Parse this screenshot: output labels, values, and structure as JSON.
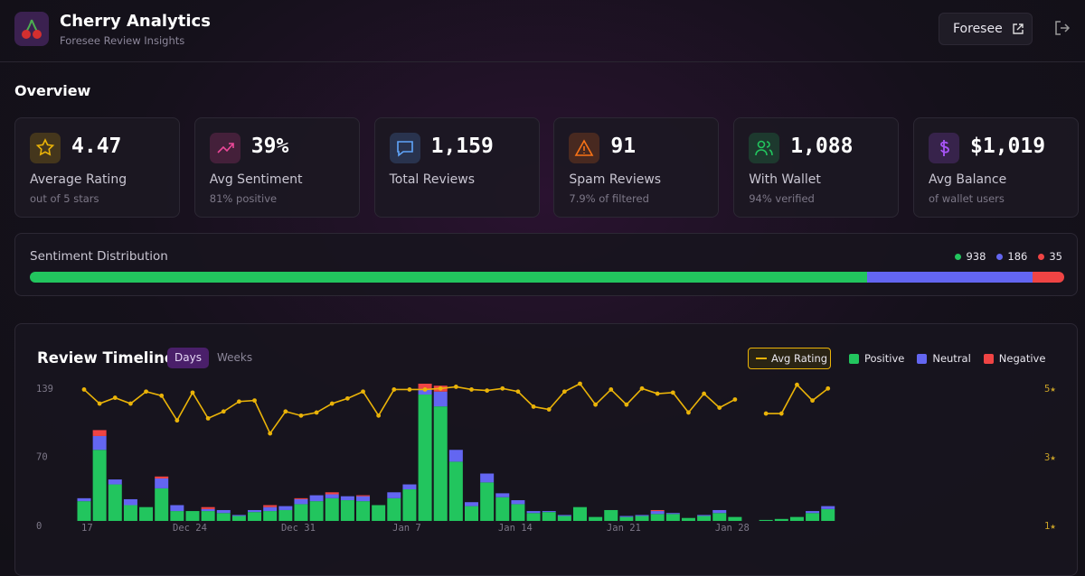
{
  "header": {
    "title": "Cherry Analytics",
    "subtitle": "Foresee Review Insights",
    "button": "Foresee"
  },
  "overview": {
    "title": "Overview",
    "cards": [
      {
        "value": "4.47",
        "label": "Average Rating",
        "sub": "out of 5 stars",
        "color": "#eab308"
      },
      {
        "value": "39%",
        "label": "Avg Sentiment",
        "sub": "81% positive",
        "color": "#ec4899"
      },
      {
        "value": "1,159",
        "label": "Total Reviews",
        "color": "#60a5fa"
      },
      {
        "value": "91",
        "label": "Spam Reviews",
        "sub": "7.9% of filtered",
        "color": "#f97316"
      },
      {
        "value": "1,088",
        "label": "With Wallet",
        "sub": "94% verified",
        "color": "#22c55e"
      },
      {
        "value": "$1,019",
        "label": "Avg Balance",
        "sub": "of wallet users",
        "color": "#a855f7"
      }
    ]
  },
  "sentiment": {
    "title": "Sentiment Distribution",
    "segments": [
      {
        "count": 938,
        "color": "#22c55e"
      },
      {
        "count": 186,
        "color": "#6366f1"
      },
      {
        "count": 35,
        "color": "#ef4444"
      }
    ]
  },
  "chart_data": {
    "type": "bar",
    "stacked": true,
    "title": "Review Timeline",
    "toggle": [
      "Days",
      "Weeks"
    ],
    "categories": [
      "17",
      null,
      null,
      null,
      null,
      null,
      null,
      "Dec 24",
      null,
      null,
      null,
      null,
      null,
      null,
      "Dec 31",
      null,
      null,
      null,
      null,
      null,
      null,
      "Jan 7",
      null,
      null,
      null,
      null,
      null,
      null,
      "Jan 14",
      null,
      null,
      null,
      null,
      null,
      null,
      "Jan 21",
      null,
      null,
      null,
      null,
      null,
      null,
      "Jan 28",
      null,
      null,
      null,
      null,
      null,
      null
    ],
    "series": [
      {
        "name": "Positive",
        "color": "#22c55e",
        "values": [
          20,
          72,
          37,
          16,
          14,
          33,
          10,
          10,
          10,
          8,
          5,
          9,
          10,
          11,
          17,
          20,
          23,
          21,
          20,
          16,
          23,
          32,
          128,
          116,
          60,
          15,
          39,
          24,
          17,
          8,
          9,
          5,
          14,
          4,
          11,
          4,
          5,
          7,
          7,
          3,
          5,
          8,
          4,
          0,
          1,
          2,
          4,
          8,
          12
        ]
      },
      {
        "name": "Neutral",
        "color": "#6366f1",
        "values": [
          3,
          14,
          5,
          6,
          0,
          10,
          6,
          0,
          2,
          3,
          1,
          2,
          4,
          4,
          5,
          6,
          4,
          4,
          5,
          0,
          6,
          5,
          6,
          15,
          12,
          4,
          9,
          4,
          4,
          2,
          1,
          1,
          0,
          0,
          0,
          1,
          1,
          3,
          1,
          0,
          1,
          3,
          0,
          0,
          0,
          0,
          0,
          2,
          3
        ]
      },
      {
        "name": "Negative",
        "color": "#ef4444",
        "values": [
          0,
          6,
          0,
          0,
          0,
          2,
          0,
          0,
          2,
          0,
          0,
          0,
          2,
          0,
          1,
          0,
          2,
          0,
          1,
          0,
          0,
          0,
          5,
          6,
          0,
          0,
          0,
          0,
          0,
          0,
          0,
          0,
          0,
          0,
          0,
          0,
          0,
          1,
          0,
          0,
          0,
          0,
          0,
          0,
          0,
          0,
          0,
          0,
          0
        ]
      },
      {
        "name": "Avg Rating",
        "type": "line",
        "axis": "y2",
        "color": "#eab308",
        "values": [
          4.83,
          4.42,
          4.59,
          4.42,
          4.77,
          4.65,
          3.93,
          4.74,
          3.99,
          4.19,
          4.48,
          4.51,
          3.55,
          4.19,
          4.07,
          4.16,
          4.42,
          4.57,
          4.77,
          4.07,
          4.83,
          4.83,
          4.83,
          4.86,
          4.91,
          4.83,
          4.8,
          4.86,
          4.77,
          4.33,
          4.25,
          4.77,
          5,
          4.39,
          4.83,
          4.39,
          4.86,
          4.71,
          4.74,
          4.16,
          4.71,
          4.3,
          4.54,
          null,
          4.13,
          4.13,
          4.97,
          4.51,
          4.86
        ]
      }
    ],
    "ylim": [
      0,
      139
    ],
    "yticks": [
      0,
      70,
      139
    ],
    "y2lim": [
      1,
      5
    ],
    "y2ticks": [
      {
        "value": 1,
        "label": "1★"
      },
      {
        "value": 3,
        "label": "3★"
      },
      {
        "value": 5,
        "label": "5★"
      }
    ]
  }
}
